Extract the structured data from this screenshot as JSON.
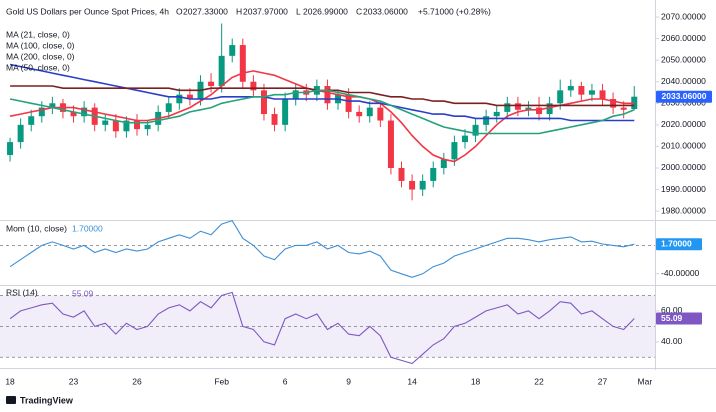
{
  "chart_data": [
    {
      "type": "candlestick",
      "title": "Gold US Dollars per Ounce Spot Prices, 4h",
      "ohlc": [
        {
          "label": "O",
          "value": "2027.33000"
        },
        {
          "label": "H",
          "value": "2037.97000"
        },
        {
          "label": "L",
          "value": "2026.99000"
        },
        {
          "label": "C",
          "value": "2033.06000"
        }
      ],
      "change": "+5.71000 (+0.28%)",
      "up_color": "#089981",
      "down_color": "#f23645",
      "candles": {
        "open": [
          2006,
          2012,
          2020,
          2024,
          2028,
          2030,
          2026,
          2024,
          2028,
          2020,
          2022,
          2017,
          2022,
          2018,
          2020,
          2026,
          2030,
          2034,
          2032,
          2040,
          2038,
          2052,
          2057,
          2040,
          2036,
          2025,
          2020,
          2032,
          2036,
          2034,
          2038,
          2030,
          2034,
          2026,
          2024,
          2028,
          2022,
          2000,
          1994,
          1990,
          1994,
          2000,
          2004,
          2012,
          2015,
          2020,
          2024,
          2026,
          2030,
          2027,
          2028,
          2025,
          2030,
          2036,
          2038,
          2034,
          2036,
          2032,
          2028,
          2027.33
        ],
        "high": [
          2014,
          2023,
          2027,
          2031,
          2033,
          2032,
          2029,
          2031,
          2030,
          2025,
          2025,
          2024,
          2025,
          2022,
          2029,
          2033,
          2037,
          2037,
          2043,
          2044,
          2067,
          2060,
          2060,
          2043,
          2039,
          2028,
          2035,
          2039,
          2039,
          2041,
          2041,
          2036,
          2037,
          2029,
          2031,
          2031,
          2025,
          2003,
          1997,
          1997,
          2003,
          2007,
          2015,
          2018,
          2023,
          2027,
          2029,
          2033,
          2033,
          2031,
          2033,
          2033,
          2041,
          2041,
          2040,
          2039,
          2039,
          2035,
          2031,
          2037.97
        ],
        "low": [
          2003,
          2009,
          2017,
          2021,
          2025,
          2023,
          2021,
          2021,
          2017,
          2017,
          2014,
          2014,
          2015,
          2015,
          2017,
          2023,
          2027,
          2029,
          2029,
          2035,
          2035,
          2049,
          2037,
          2033,
          2022,
          2017,
          2017,
          2029,
          2031,
          2031,
          2027,
          2027,
          2023,
          2021,
          2021,
          2019,
          1997,
          1991,
          1985,
          1987,
          1991,
          1997,
          2001,
          2009,
          2012,
          2017,
          2021,
          2023,
          2024,
          2024,
          2022,
          2022,
          2027,
          2033,
          2031,
          2031,
          2029,
          2025,
          2023,
          2026.99
        ],
        "close": [
          2012,
          2020,
          2024,
          2028,
          2030,
          2026,
          2024,
          2028,
          2020,
          2022,
          2017,
          2022,
          2018,
          2020,
          2026,
          2030,
          2034,
          2032,
          2040,
          2038,
          2052,
          2057,
          2040,
          2036,
          2025,
          2020,
          2032,
          2036,
          2034,
          2038,
          2030,
          2034,
          2026,
          2024,
          2028,
          2022,
          2000,
          1994,
          1990,
          1994,
          2000,
          2004,
          2012,
          2015,
          2020,
          2024,
          2026,
          2030,
          2027,
          2028,
          2025,
          2030,
          2036,
          2038,
          2034,
          2036,
          2032,
          2028,
          2027,
          2033.06
        ]
      },
      "price_badge": {
        "value": 2033.06,
        "label": "2033.06000",
        "color": "#2962ff"
      },
      "series": [
        {
          "name": "MA (21, close, 0)",
          "color": "#f23645",
          "values": [
            2024,
            2025,
            2026,
            2027,
            2028,
            2028,
            2028,
            2027,
            2026,
            2025,
            2024,
            2023,
            2022,
            2022,
            2023,
            2024,
            2026,
            2028,
            2031,
            2034,
            2038,
            2042,
            2044,
            2045,
            2044,
            2043,
            2041,
            2039,
            2037,
            2036,
            2035,
            2034,
            2033,
            2033,
            2032,
            2030,
            2026,
            2021,
            2015,
            2010,
            2006,
            2004,
            2003,
            2006,
            2010,
            2015,
            2020,
            2024,
            2026,
            2027,
            2027,
            2028,
            2029,
            2030,
            2031,
            2032,
            2032,
            2031,
            2030,
            2030
          ]
        },
        {
          "name": "MA (100, close, 0)",
          "color": "#2a3ec9",
          "values": [
            2048,
            2047,
            2046,
            2045,
            2044,
            2043,
            2042,
            2041,
            2040,
            2039,
            2038,
            2037,
            2036,
            2035,
            2034,
            2033,
            2033,
            2032,
            2032,
            2032,
            2033,
            2033,
            2033,
            2033,
            2033,
            2032,
            2032,
            2032,
            2032,
            2032,
            2032,
            2032,
            2031,
            2031,
            2030,
            2030,
            2029,
            2028,
            2027,
            2026,
            2025,
            2025,
            2024,
            2024,
            2023,
            2023,
            2023,
            2023,
            2023,
            2023,
            2023,
            2023,
            2023,
            2022,
            2022,
            2022,
            2022,
            2022,
            2022,
            2022
          ]
        },
        {
          "name": "MA (200, close, 0)",
          "color": "#7b2020",
          "values": [
            2038,
            2038,
            2038,
            2038,
            2038,
            2037,
            2037,
            2037,
            2037,
            2037,
            2037,
            2037,
            2037,
            2037,
            2037,
            2037,
            2036,
            2036,
            2036,
            2037,
            2037,
            2037,
            2037,
            2037,
            2037,
            2037,
            2037,
            2037,
            2037,
            2036,
            2036,
            2036,
            2035,
            2035,
            2035,
            2034,
            2033,
            2033,
            2032,
            2032,
            2031,
            2031,
            2030,
            2030,
            2030,
            2030,
            2029,
            2029,
            2029,
            2029,
            2029,
            2029,
            2029,
            2029,
            2029,
            2029,
            2029,
            2029,
            2029,
            2029
          ]
        },
        {
          "name": "MA (50, close, 0)",
          "color": "#26a17b",
          "values": [
            2032,
            2031,
            2030,
            2029,
            2028,
            2027,
            2026,
            2025,
            2024,
            2023,
            2022,
            2021,
            2021,
            2021,
            2022,
            2023,
            2024,
            2026,
            2027,
            2028,
            2030,
            2031,
            2032,
            2033,
            2033,
            2034,
            2034,
            2035,
            2035,
            2036,
            2036,
            2035,
            2034,
            2033,
            2032,
            2031,
            2029,
            2027,
            2025,
            2023,
            2021,
            2019,
            2018,
            2017,
            2016,
            2016,
            2016,
            2016,
            2016,
            2016,
            2016,
            2017,
            2018,
            2019,
            2020,
            2021,
            2022,
            2024,
            2025,
            2027
          ]
        }
      ],
      "xlim": [
        -0.95,
        60.96
      ],
      "xticks": [
        {
          "value": 0,
          "label": "18"
        },
        {
          "value": 6,
          "label": "23"
        },
        {
          "value": 12,
          "label": "26"
        },
        {
          "value": 20,
          "label": "Feb"
        },
        {
          "value": 26,
          "label": "6"
        },
        {
          "value": 32,
          "label": "9"
        },
        {
          "value": 38,
          "label": "14"
        },
        {
          "value": 44,
          "label": "18"
        },
        {
          "value": 50,
          "label": "22"
        },
        {
          "value": 56,
          "label": "27"
        },
        {
          "value": 60,
          "label": "Mar"
        }
      ],
      "ylim": [
        1976.8,
        2077.9
      ],
      "yticks": [
        {
          "value": 1980,
          "label": "1980.00000"
        },
        {
          "value": 1990,
          "label": "1990.00000"
        },
        {
          "value": 2000,
          "label": "2000.00000"
        },
        {
          "value": 2010,
          "label": "2010.00000"
        },
        {
          "value": 2020,
          "label": "2020.00000"
        },
        {
          "value": 2030,
          "label": "2030.00000"
        },
        {
          "value": 2040,
          "label": "2040.00000"
        },
        {
          "value": 2050,
          "label": "2050.00000"
        },
        {
          "value": 2060,
          "label": "2060.00000"
        },
        {
          "value": 2070,
          "label": "2070.00000"
        }
      ]
    },
    {
      "type": "line",
      "title": "Mom (10, close)",
      "series": [
        {
          "name": "Mom",
          "color": "#3d8fd6",
          "values": [
            -30,
            -20,
            -10,
            0,
            5,
            0,
            -5,
            0,
            -10,
            -5,
            -10,
            -5,
            -8,
            -5,
            5,
            10,
            15,
            10,
            20,
            15,
            30,
            35,
            10,
            0,
            -15,
            -20,
            -5,
            0,
            0,
            5,
            -5,
            0,
            -10,
            -12,
            -8,
            -15,
            -35,
            -40,
            -45,
            -40,
            -30,
            -25,
            -15,
            -10,
            -5,
            0,
            5,
            10,
            10,
            8,
            5,
            8,
            10,
            12,
            5,
            6,
            2,
            0,
            -2,
            1.7
          ],
          "last_label": "1.70000",
          "badge_color": "#2196f3"
        }
      ],
      "levels": [
        0
      ],
      "ylim": [
        -53,
        33
      ],
      "yticks": [
        {
          "value": -40,
          "label": "-40.00000"
        }
      ]
    },
    {
      "type": "line",
      "title": "RSI (14)",
      "series": [
        {
          "name": "RSI",
          "color": "#7e57c2",
          "values": [
            55,
            60,
            62,
            64,
            65,
            58,
            56,
            60,
            50,
            52,
            45,
            52,
            48,
            50,
            58,
            62,
            64,
            60,
            66,
            62,
            70,
            72,
            50,
            48,
            40,
            38,
            55,
            58,
            55,
            58,
            48,
            52,
            45,
            44,
            50,
            44,
            30,
            28,
            26,
            32,
            38,
            42,
            50,
            52,
            56,
            60,
            62,
            64,
            58,
            60,
            55,
            60,
            66,
            65,
            58,
            60,
            55,
            50,
            48,
            55.09
          ],
          "badge_color": "#7e57c2"
        }
      ],
      "band": [
        30,
        70
      ],
      "levels": [
        30,
        50,
        70
      ],
      "ylim": [
        25,
        75.5
      ],
      "yticks": [
        {
          "value": 40,
          "label": "40.00"
        },
        {
          "value": 60,
          "label": "60.00"
        }
      ]
    }
  ],
  "footer": "TradingView"
}
